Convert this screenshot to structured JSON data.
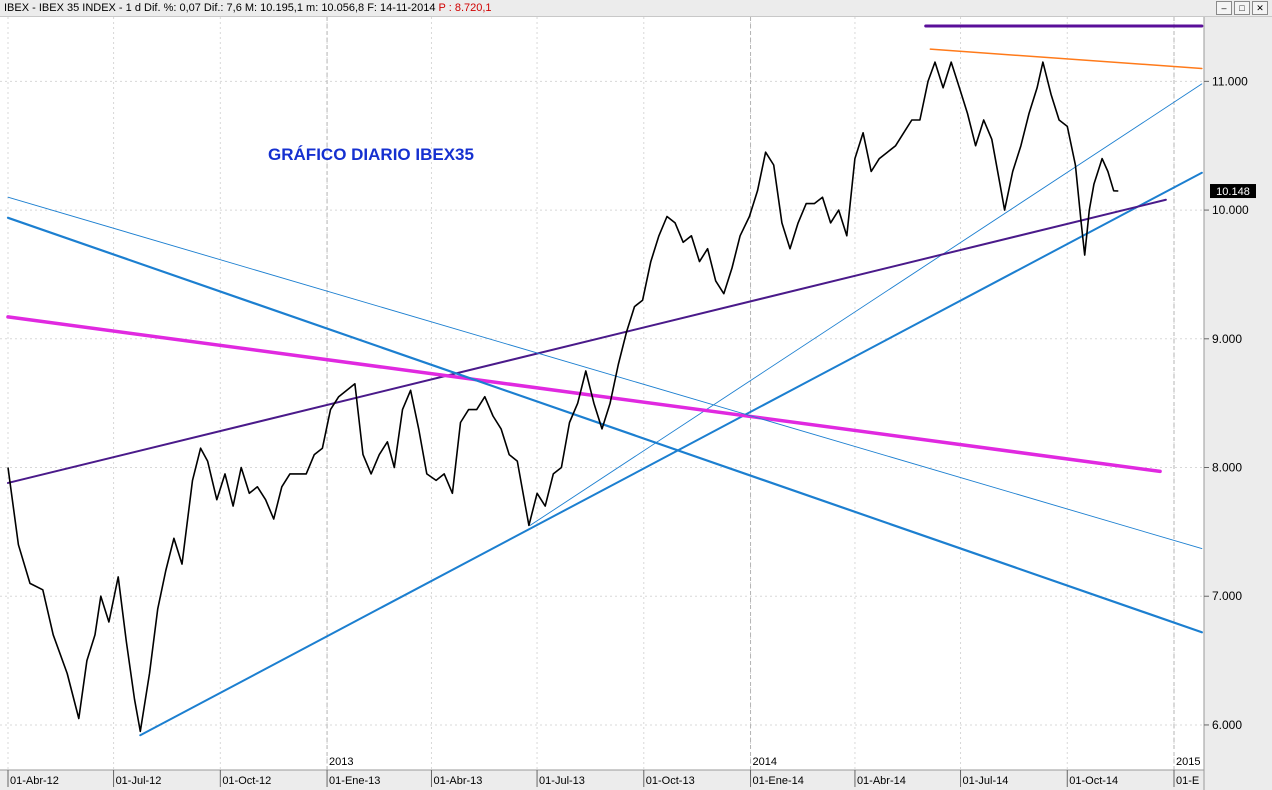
{
  "window": {
    "ticker": "IBEX - IBEX 35 INDEX - 1 d",
    "stats": "Dif. %: 0,07  Dif.: 7,6  M: 10.195,1  m: 10.056,8  F: 14-11-2014",
    "p_value": "P : 8.720,1",
    "minimize_glyph": "–",
    "maximize_glyph": "□",
    "close_glyph": "✕"
  },
  "chart_data": {
    "type": "line",
    "title": "GRÁFICO DIARIO IBEX35",
    "y_ticks": [
      "6.000",
      "7.000",
      "8.000",
      "9.000",
      "10.000",
      "11.000"
    ],
    "y_tick_values": [
      6000,
      7000,
      8000,
      9000,
      10000,
      11000
    ],
    "ylim": [
      5650,
      11500
    ],
    "x_labels": [
      "01-Abr-12",
      "01-Jul-12",
      "01-Oct-12",
      "01-Ene-13",
      "01-Abr-13",
      "01-Jul-13",
      "01-Oct-13",
      "01-Ene-14",
      "01-Abr-14",
      "01-Jul-14",
      "01-Oct-14",
      "01-E"
    ],
    "x_label_dates": [
      "2012-04-01",
      "2012-07-01",
      "2012-10-01",
      "2013-01-01",
      "2013-04-01",
      "2013-07-01",
      "2013-10-01",
      "2014-01-01",
      "2014-04-01",
      "2014-07-01",
      "2014-10-01",
      "2015-01-01"
    ],
    "year_labels": [
      "2013",
      "2014",
      "2015"
    ],
    "year_dates": [
      "2013-01-01",
      "2014-01-01",
      "2015-01-01"
    ],
    "last_price": "10.148",
    "last_price_value": 10148,
    "grid": true,
    "price_series": {
      "points": [
        [
          "2012-04-01",
          8000
        ],
        [
          "2012-04-10",
          7400
        ],
        [
          "2012-04-20",
          7100
        ],
        [
          "2012-05-01",
          7050
        ],
        [
          "2012-05-10",
          6700
        ],
        [
          "2012-05-22",
          6400
        ],
        [
          "2012-06-01",
          6050
        ],
        [
          "2012-06-08",
          6500
        ],
        [
          "2012-06-15",
          6700
        ],
        [
          "2012-06-20",
          7000
        ],
        [
          "2012-06-27",
          6800
        ],
        [
          "2012-07-05",
          7150
        ],
        [
          "2012-07-12",
          6650
        ],
        [
          "2012-07-19",
          6200
        ],
        [
          "2012-07-24",
          5950
        ],
        [
          "2012-08-01",
          6400
        ],
        [
          "2012-08-08",
          6900
        ],
        [
          "2012-08-15",
          7200
        ],
        [
          "2012-08-22",
          7450
        ],
        [
          "2012-08-29",
          7250
        ],
        [
          "2012-09-07",
          7900
        ],
        [
          "2012-09-14",
          8150
        ],
        [
          "2012-09-20",
          8050
        ],
        [
          "2012-09-28",
          7750
        ],
        [
          "2012-10-05",
          7950
        ],
        [
          "2012-10-12",
          7700
        ],
        [
          "2012-10-19",
          8000
        ],
        [
          "2012-10-26",
          7800
        ],
        [
          "2012-11-02",
          7850
        ],
        [
          "2012-11-09",
          7750
        ],
        [
          "2012-11-16",
          7600
        ],
        [
          "2012-11-23",
          7850
        ],
        [
          "2012-11-30",
          7950
        ],
        [
          "2012-12-07",
          7950
        ],
        [
          "2012-12-14",
          7950
        ],
        [
          "2012-12-21",
          8100
        ],
        [
          "2012-12-28",
          8150
        ],
        [
          "2013-01-04",
          8450
        ],
        [
          "2013-01-11",
          8550
        ],
        [
          "2013-01-18",
          8600
        ],
        [
          "2013-01-25",
          8650
        ],
        [
          "2013-02-01",
          8100
        ],
        [
          "2013-02-08",
          7950
        ],
        [
          "2013-02-15",
          8100
        ],
        [
          "2013-02-22",
          8200
        ],
        [
          "2013-02-28",
          8000
        ],
        [
          "2013-03-07",
          8450
        ],
        [
          "2013-03-14",
          8600
        ],
        [
          "2013-03-21",
          8300
        ],
        [
          "2013-03-28",
          7950
        ],
        [
          "2013-04-05",
          7900
        ],
        [
          "2013-04-12",
          7950
        ],
        [
          "2013-04-19",
          7800
        ],
        [
          "2013-04-26",
          8350
        ],
        [
          "2013-05-03",
          8450
        ],
        [
          "2013-05-10",
          8450
        ],
        [
          "2013-05-17",
          8550
        ],
        [
          "2013-05-24",
          8400
        ],
        [
          "2013-05-31",
          8300
        ],
        [
          "2013-06-07",
          8100
        ],
        [
          "2013-06-14",
          8050
        ],
        [
          "2013-06-21",
          7700
        ],
        [
          "2013-06-24",
          7550
        ],
        [
          "2013-07-01",
          7800
        ],
        [
          "2013-07-08",
          7700
        ],
        [
          "2013-07-15",
          7950
        ],
        [
          "2013-07-22",
          8000
        ],
        [
          "2013-07-29",
          8350
        ],
        [
          "2013-08-05",
          8500
        ],
        [
          "2013-08-12",
          8750
        ],
        [
          "2013-08-19",
          8500
        ],
        [
          "2013-08-26",
          8300
        ],
        [
          "2013-09-02",
          8500
        ],
        [
          "2013-09-09",
          8800
        ],
        [
          "2013-09-16",
          9050
        ],
        [
          "2013-09-23",
          9250
        ],
        [
          "2013-09-30",
          9300
        ],
        [
          "2013-10-07",
          9600
        ],
        [
          "2013-10-14",
          9800
        ],
        [
          "2013-10-21",
          9950
        ],
        [
          "2013-10-28",
          9900
        ],
        [
          "2013-11-04",
          9750
        ],
        [
          "2013-11-11",
          9800
        ],
        [
          "2013-11-18",
          9600
        ],
        [
          "2013-11-25",
          9700
        ],
        [
          "2013-12-02",
          9450
        ],
        [
          "2013-12-09",
          9350
        ],
        [
          "2013-12-16",
          9550
        ],
        [
          "2013-12-23",
          9800
        ],
        [
          "2013-12-31",
          9950
        ],
        [
          "2014-01-07",
          10150
        ],
        [
          "2014-01-14",
          10450
        ],
        [
          "2014-01-21",
          10350
        ],
        [
          "2014-01-28",
          9900
        ],
        [
          "2014-02-04",
          9700
        ],
        [
          "2014-02-11",
          9900
        ],
        [
          "2014-02-18",
          10050
        ],
        [
          "2014-02-25",
          10050
        ],
        [
          "2014-03-04",
          10100
        ],
        [
          "2014-03-11",
          9900
        ],
        [
          "2014-03-18",
          10000
        ],
        [
          "2014-03-25",
          9800
        ],
        [
          "2014-04-01",
          10400
        ],
        [
          "2014-04-08",
          10600
        ],
        [
          "2014-04-15",
          10300
        ],
        [
          "2014-04-22",
          10400
        ],
        [
          "2014-04-29",
          10450
        ],
        [
          "2014-05-06",
          10500
        ],
        [
          "2014-05-13",
          10600
        ],
        [
          "2014-05-20",
          10700
        ],
        [
          "2014-05-27",
          10700
        ],
        [
          "2014-06-03",
          11000
        ],
        [
          "2014-06-09",
          11150
        ],
        [
          "2014-06-16",
          10950
        ],
        [
          "2014-06-23",
          11150
        ],
        [
          "2014-06-30",
          10950
        ],
        [
          "2014-07-07",
          10750
        ],
        [
          "2014-07-14",
          10500
        ],
        [
          "2014-07-21",
          10700
        ],
        [
          "2014-07-28",
          10550
        ],
        [
          "2014-08-04",
          10200
        ],
        [
          "2014-08-08",
          10000
        ],
        [
          "2014-08-15",
          10300
        ],
        [
          "2014-08-22",
          10500
        ],
        [
          "2014-08-29",
          10750
        ],
        [
          "2014-09-05",
          10950
        ],
        [
          "2014-09-10",
          11150
        ],
        [
          "2014-09-17",
          10900
        ],
        [
          "2014-09-24",
          10700
        ],
        [
          "2014-10-01",
          10650
        ],
        [
          "2014-10-08",
          10350
        ],
        [
          "2014-10-13",
          9900
        ],
        [
          "2014-10-16",
          9650
        ],
        [
          "2014-10-20",
          10000
        ],
        [
          "2014-10-24",
          10200
        ],
        [
          "2014-10-31",
          10400
        ],
        [
          "2014-11-05",
          10300
        ],
        [
          "2014-11-10",
          10150
        ],
        [
          "2014-11-14",
          10148
        ]
      ]
    },
    "trend_lines": [
      {
        "color": "#5a0f99",
        "width": 3,
        "from": [
          "2014-06-01",
          11430
        ],
        "to": [
          "2015-01-25",
          11430
        ]
      },
      {
        "color": "#ff7a1a",
        "width": 1.5,
        "from": [
          "2014-06-05",
          11250
        ],
        "to": [
          "2015-01-25",
          11100
        ]
      },
      {
        "color": "#1c7fd0",
        "width": 0.9,
        "from": [
          "2013-06-25",
          7550
        ],
        "to": [
          "2015-01-25",
          10980
        ]
      },
      {
        "color": "#1c7fd0",
        "width": 2,
        "from": [
          "2012-07-24",
          5920
        ],
        "to": [
          "2015-01-25",
          10290
        ]
      },
      {
        "color": "#4a1a8a",
        "width": 2,
        "from": [
          "2012-04-01",
          7880
        ],
        "to": [
          "2014-12-25",
          10080
        ]
      },
      {
        "color": "#e029e0",
        "width": 3.5,
        "from": [
          "2012-04-01",
          9170
        ],
        "to": [
          "2014-12-20",
          7970
        ]
      },
      {
        "color": "#1c7fd0",
        "width": 2.2,
        "from": [
          "2012-04-01",
          9940
        ],
        "to": [
          "2015-01-25",
          6720
        ]
      },
      {
        "color": "#1c7fd0",
        "width": 0.9,
        "from": [
          "2012-04-01",
          10100
        ],
        "to": [
          "2015-01-25",
          7370
        ]
      }
    ]
  }
}
